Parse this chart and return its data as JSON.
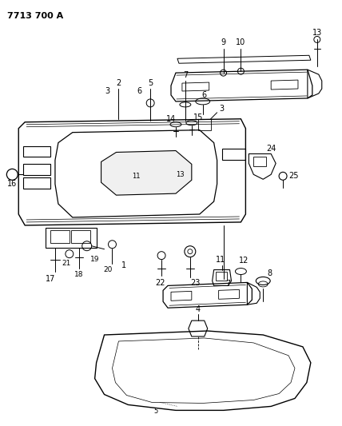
{
  "title": "7713 700 A",
  "bg": "#ffffff",
  "lc": "#000000",
  "figsize": [
    4.28,
    5.33
  ],
  "dpi": 100
}
